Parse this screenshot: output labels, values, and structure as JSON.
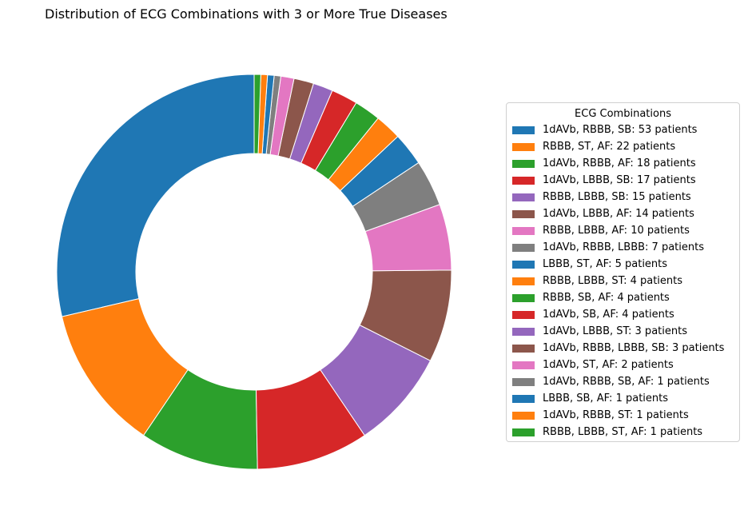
{
  "chart_data": {
    "type": "pie",
    "style": "donut",
    "title": "Distribution of ECG Combinations with 3 or More True Diseases",
    "legend_title": "ECG Combinations",
    "legend_placement": "right",
    "start_angle_deg": 90,
    "direction": "counterclockwise",
    "slices": [
      {
        "label": "1dAVb, RBBB, SB: 53 patients",
        "value": 53,
        "color": "#1f77b4"
      },
      {
        "label": "RBBB, ST, AF: 22 patients",
        "value": 22,
        "color": "#ff7f0e"
      },
      {
        "label": "1dAVb, RBBB, AF: 18 patients",
        "value": 18,
        "color": "#2ca02c"
      },
      {
        "label": "1dAVb, LBBB, SB: 17 patients",
        "value": 17,
        "color": "#d62728"
      },
      {
        "label": "RBBB, LBBB, SB: 15 patients",
        "value": 15,
        "color": "#9467bd"
      },
      {
        "label": "1dAVb, LBBB, AF: 14 patients",
        "value": 14,
        "color": "#8c564b"
      },
      {
        "label": "RBBB, LBBB, AF: 10 patients",
        "value": 10,
        "color": "#e377c2"
      },
      {
        "label": "1dAVb, RBBB, LBBB: 7 patients",
        "value": 7,
        "color": "#7f7f7f"
      },
      {
        "label": "LBBB, ST, AF: 5 patients",
        "value": 5,
        "color": "#1f77b4"
      },
      {
        "label": "RBBB, LBBB, ST: 4 patients",
        "value": 4,
        "color": "#ff7f0e"
      },
      {
        "label": "RBBB, SB, AF: 4 patients",
        "value": 4,
        "color": "#2ca02c"
      },
      {
        "label": "1dAVb, SB, AF: 4 patients",
        "value": 4,
        "color": "#d62728"
      },
      {
        "label": "1dAVb, LBBB, ST: 3 patients",
        "value": 3,
        "color": "#9467bd"
      },
      {
        "label": "1dAVb, RBBB, LBBB, SB: 3 patients",
        "value": 3,
        "color": "#8c564b"
      },
      {
        "label": "1dAVb, ST, AF: 2 patients",
        "value": 2,
        "color": "#e377c2"
      },
      {
        "label": "1dAVb, RBBB, SB, AF: 1 patients",
        "value": 1,
        "color": "#7f7f7f"
      },
      {
        "label": "LBBB, SB, AF: 1 patients",
        "value": 1,
        "color": "#1f77b4"
      },
      {
        "label": "1dAVb, RBBB, ST: 1 patients",
        "value": 1,
        "color": "#ff7f0e"
      },
      {
        "label": "RBBB, LBBB, ST, AF: 1 patients",
        "value": 1,
        "color": "#2ca02c"
      }
    ]
  }
}
